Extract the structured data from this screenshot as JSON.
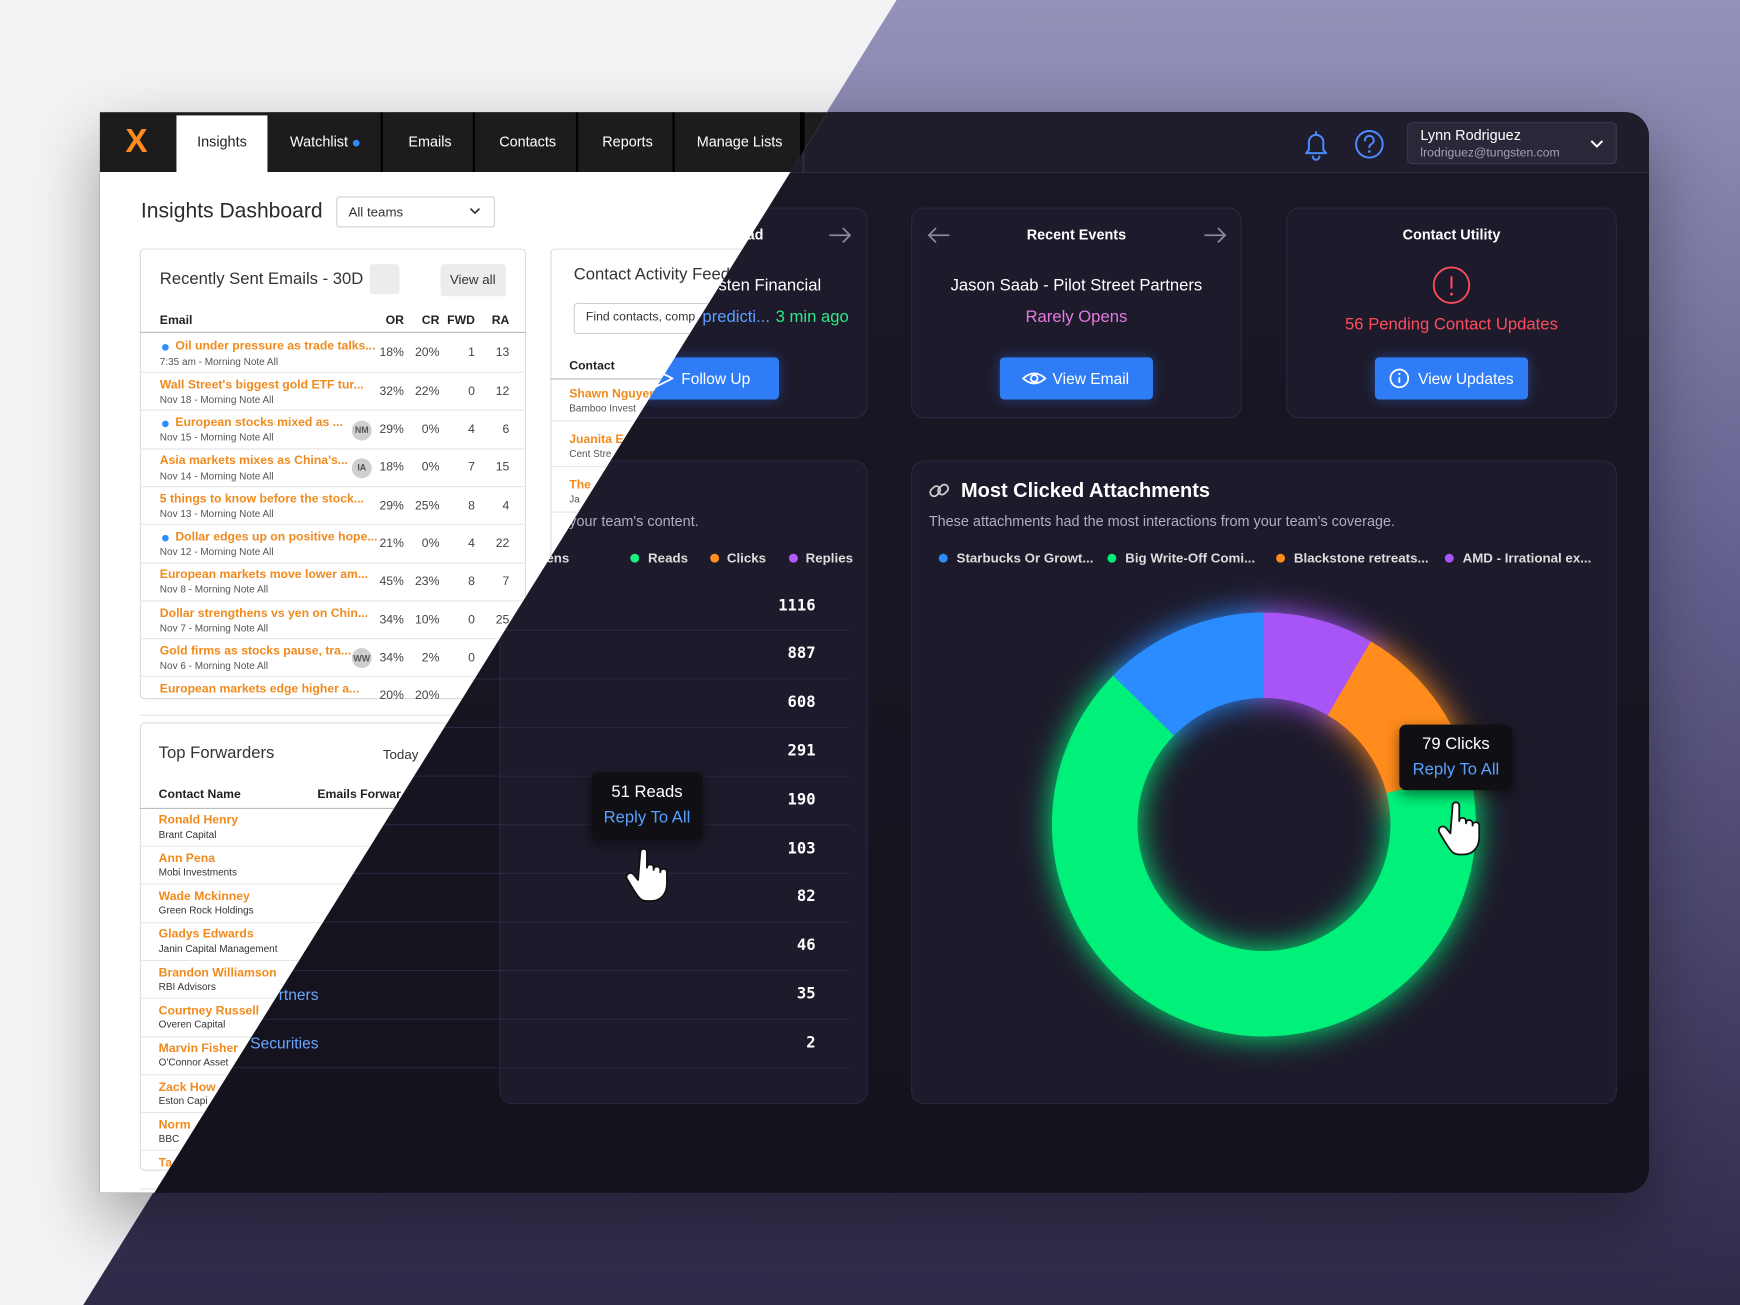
{
  "nav": {
    "logo": "X",
    "tabs": [
      "Insights",
      "Watchlist",
      "Emails",
      "Contacts",
      "Reports",
      "Manage Lists"
    ]
  },
  "user": {
    "name": "Lynn Rodriguez",
    "email": "lrodriguez@tungsten.com"
  },
  "header": {
    "title": "Insights Dashboard",
    "team_filter": "All teams"
  },
  "recent_emails": {
    "title": "Recently Sent Emails - 30D",
    "view_all": "View all",
    "columns": [
      "Email",
      "OR",
      "CR",
      "FWD",
      "RA"
    ],
    "rows": [
      {
        "subject": "Oil under pressure as trade talks...",
        "sent": "7:35 am - Morning Note All",
        "unread": true,
        "or": "18%",
        "cr": "20%",
        "fwd": "1",
        "ra": "13"
      },
      {
        "subject": "Wall Street's biggest gold ETF tur...",
        "sent": "Nov 18 - Morning Note All",
        "or": "32%",
        "cr": "22%",
        "fwd": "0",
        "ra": "12"
      },
      {
        "subject": "European stocks mixed as ...",
        "sent": "Nov 15 - Morning Note All",
        "unread": true,
        "badge": "NM",
        "or": "29%",
        "cr": "0%",
        "fwd": "4",
        "ra": "6"
      },
      {
        "subject": "Asia markets mixes as China's...",
        "sent": "Nov 14 - Morning Note All",
        "badge": "IA",
        "or": "18%",
        "cr": "0%",
        "fwd": "7",
        "ra": "15"
      },
      {
        "subject": "5 things to know before the stock...",
        "sent": "Nov 13 - Morning Note All",
        "or": "29%",
        "cr": "25%",
        "fwd": "8",
        "ra": "4"
      },
      {
        "subject": "Dollar edges up on positive hope...",
        "sent": "Nov 12 - Morning Note All",
        "unread": true,
        "or": "21%",
        "cr": "0%",
        "fwd": "4",
        "ra": "22"
      },
      {
        "subject": "European markets move lower am...",
        "sent": "Nov 8 - Morning Note All",
        "or": "45%",
        "cr": "23%",
        "fwd": "8",
        "ra": "7"
      },
      {
        "subject": "Dollar strengthens vs yen on Chin...",
        "sent": "Nov 7 - Morning Note All",
        "or": "34%",
        "cr": "10%",
        "fwd": "0",
        "ra": "25"
      },
      {
        "subject": "Gold firms as stocks pause, tra...",
        "sent": "Nov 6 - Morning Note All",
        "badge": "WW",
        "or": "34%",
        "cr": "2%",
        "fwd": "0"
      },
      {
        "subject": "European markets edge higher a...",
        "or": "20%",
        "cr": "20%"
      }
    ]
  },
  "contact_feed": {
    "title": "Contact Activity Feed",
    "search_placeholder": "Find contacts, comp",
    "column": "Contact",
    "rows": [
      {
        "name": "Shawn Nguyen",
        "firm": "Bamboo Invest"
      },
      {
        "name": "Juanita E",
        "firm": "Cent Stre"
      },
      {
        "name": "The",
        "firm": "Ja"
      }
    ]
  },
  "top_forwarders": {
    "title": "Top Forwarders",
    "period": "Today",
    "columns": [
      "Contact Name",
      "Emails Forwar"
    ],
    "rows": [
      {
        "name": "Ronald Henry",
        "firm": "Brant Capital"
      },
      {
        "name": "Ann Pena",
        "firm": "Mobi Investments"
      },
      {
        "name": "Wade Mckinney",
        "firm": "Green Rock Holdings"
      },
      {
        "name": "Gladys Edwards",
        "firm": "Janin Capital Management"
      },
      {
        "name": "Brandon Williamson",
        "firm": "RBI Advisors"
      },
      {
        "name": "Courtney Russell",
        "firm": "Overen Capital"
      },
      {
        "name": "Marvin Fisher",
        "firm": "O'Connor Asset"
      },
      {
        "name": "Zack How",
        "firm": "Eston Capi"
      },
      {
        "name": "Norm",
        "firm": "BBC"
      },
      {
        "name": "Ta"
      }
    ]
  },
  "recent_read": {
    "title": "ad",
    "contact": "sten Financial",
    "link": "predicti...",
    "time": "3 min ago",
    "action": "Follow Up"
  },
  "recent_events": {
    "title": "Recent Events",
    "contact": "Jason Saab - Pilot Street Partners",
    "status": "Rarely Opens",
    "action": "View Email"
  },
  "contact_utility": {
    "title": "Contact Utility",
    "message": "56 Pending Contact Updates",
    "action": "View Updates"
  },
  "engagement": {
    "subtitle": "your team's content.",
    "legend": [
      {
        "name": "nal Opens",
        "color": "#2b8cff"
      },
      {
        "name": "Reads",
        "color": "#19f07f"
      },
      {
        "name": "Clicks",
        "color": "#ff8f1f"
      },
      {
        "name": "Replies",
        "color": "#b55cff"
      }
    ],
    "rows": [
      {
        "total": "1116"
      },
      {
        "total": "887"
      },
      {
        "total": "608"
      },
      {
        "total": "291"
      },
      {
        "total": "190"
      },
      {
        "total": "103"
      },
      {
        "total": "82"
      },
      {
        "total": "46"
      },
      {
        "contact": "rtners",
        "total": "35"
      },
      {
        "contact": "Securities",
        "total": "2"
      }
    ],
    "tooltip": {
      "label": "51 Reads",
      "action": "Reply To All"
    }
  },
  "chart_data": {
    "type": "donut",
    "title": "Most Clicked Attachments",
    "subtitle": "These attachments had the most interactions from your team's coverage.",
    "categories": [
      "Starbucks Or Growt...",
      "Big Write-Off Comi...",
      "Blackstone retreats...",
      "AMD - Irrational ex..."
    ],
    "values": [
      15,
      79,
      15,
      10
    ],
    "colors": [
      "#2b8cff",
      "#00f07a",
      "#ff8c1a",
      "#a855f7"
    ],
    "tooltip": {
      "index": 1,
      "label": "79 Clicks",
      "action": "Reply To All"
    }
  }
}
